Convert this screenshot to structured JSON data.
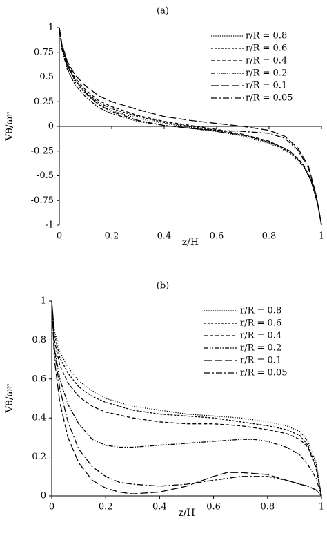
{
  "chart_data": [
    {
      "type": "line",
      "panel_label": "(a)",
      "xlabel": "z/H",
      "ylabel": "Vθ/ωr",
      "xlim": [
        0,
        1
      ],
      "ylim": [
        -1,
        1
      ],
      "xticks": [
        "0",
        "0.2",
        "0.4",
        "0.6",
        "0.8",
        "1"
      ],
      "yticks": [
        "1",
        "0.75",
        "0.5",
        "0.25",
        "0",
        "-0.25",
        "-0.5",
        "-0.75",
        "-1"
      ],
      "grid": false,
      "legend_position": "top-right",
      "series": [
        {
          "name": "r/R = 0.8",
          "style": "dotted",
          "x": [
            0,
            0.01,
            0.03,
            0.06,
            0.1,
            0.15,
            0.2,
            0.3,
            0.4,
            0.5,
            0.6,
            0.7,
            0.8,
            0.88,
            0.93,
            0.96,
            0.985,
            1
          ],
          "y": [
            1,
            0.8,
            0.6,
            0.45,
            0.33,
            0.22,
            0.16,
            0.08,
            0.03,
            -0.01,
            -0.05,
            -0.1,
            -0.17,
            -0.27,
            -0.4,
            -0.55,
            -0.78,
            -1
          ]
        },
        {
          "name": "r/R = 0.6",
          "style": "short-dash",
          "x": [
            0,
            0.01,
            0.03,
            0.06,
            0.1,
            0.15,
            0.2,
            0.3,
            0.4,
            0.5,
            0.6,
            0.7,
            0.8,
            0.88,
            0.93,
            0.96,
            0.985,
            1
          ],
          "y": [
            1,
            0.8,
            0.62,
            0.47,
            0.35,
            0.24,
            0.18,
            0.1,
            0.04,
            0,
            -0.04,
            -0.09,
            -0.16,
            -0.26,
            -0.39,
            -0.55,
            -0.78,
            -1
          ]
        },
        {
          "name": "r/R = 0.4",
          "style": "dash",
          "x": [
            0,
            0.01,
            0.03,
            0.06,
            0.1,
            0.15,
            0.2,
            0.3,
            0.4,
            0.5,
            0.6,
            0.7,
            0.8,
            0.88,
            0.93,
            0.96,
            0.985,
            1
          ],
          "y": [
            1,
            0.82,
            0.64,
            0.49,
            0.37,
            0.26,
            0.2,
            0.11,
            0.05,
            0.01,
            -0.03,
            -0.08,
            -0.15,
            -0.25,
            -0.38,
            -0.54,
            -0.77,
            -1
          ]
        },
        {
          "name": "r/R = 0.2",
          "style": "dash-dot-dot",
          "x": [
            0,
            0.01,
            0.03,
            0.06,
            0.1,
            0.15,
            0.2,
            0.3,
            0.4,
            0.5,
            0.6,
            0.7,
            0.8,
            0.88,
            0.93,
            0.96,
            0.985,
            1
          ],
          "y": [
            1,
            0.78,
            0.58,
            0.42,
            0.3,
            0.19,
            0.13,
            0.05,
            0.01,
            -0.02,
            -0.05,
            -0.09,
            -0.15,
            -0.25,
            -0.39,
            -0.55,
            -0.78,
            -1
          ]
        },
        {
          "name": "r/R = 0.1",
          "style": "long-dash",
          "x": [
            0,
            0.01,
            0.03,
            0.06,
            0.1,
            0.15,
            0.2,
            0.3,
            0.4,
            0.5,
            0.6,
            0.7,
            0.8,
            0.86,
            0.91,
            0.95,
            0.98,
            1
          ],
          "y": [
            1,
            0.83,
            0.66,
            0.52,
            0.41,
            0.31,
            0.25,
            0.17,
            0.1,
            0.06,
            0.03,
            0,
            -0.04,
            -0.1,
            -0.22,
            -0.4,
            -0.7,
            -1
          ]
        },
        {
          "name": "r/R = 0.05",
          "style": "dash-dot",
          "x": [
            0,
            0.01,
            0.03,
            0.06,
            0.1,
            0.15,
            0.2,
            0.3,
            0.4,
            0.5,
            0.6,
            0.7,
            0.8,
            0.86,
            0.91,
            0.95,
            0.98,
            1
          ],
          "y": [
            1,
            0.8,
            0.62,
            0.47,
            0.34,
            0.22,
            0.15,
            0.06,
            0.01,
            -0.02,
            -0.04,
            -0.05,
            -0.07,
            -0.12,
            -0.24,
            -0.42,
            -0.7,
            -1
          ]
        }
      ]
    },
    {
      "type": "line",
      "panel_label": "(b)",
      "xlabel": "z/H",
      "ylabel": "Vθ/ωr",
      "xlim": [
        0,
        1
      ],
      "ylim": [
        0,
        1
      ],
      "xticks": [
        "0",
        "0.2",
        "0.4",
        "0.6",
        "0.8",
        "1"
      ],
      "yticks": [
        "1",
        "0.8",
        "0.6",
        "0.4",
        "0.2",
        "0"
      ],
      "grid": false,
      "legend_position": "top-right",
      "series": [
        {
          "name": "r/R = 0.8",
          "style": "dotted",
          "x": [
            0,
            0.01,
            0.03,
            0.06,
            0.1,
            0.15,
            0.2,
            0.3,
            0.4,
            0.5,
            0.6,
            0.7,
            0.8,
            0.87,
            0.92,
            0.95,
            0.98,
            1
          ],
          "y": [
            1,
            0.85,
            0.74,
            0.66,
            0.59,
            0.54,
            0.5,
            0.46,
            0.44,
            0.42,
            0.41,
            0.4,
            0.38,
            0.36,
            0.33,
            0.28,
            0.17,
            0
          ]
        },
        {
          "name": "r/R = 0.6",
          "style": "short-dash",
          "x": [
            0,
            0.01,
            0.03,
            0.06,
            0.1,
            0.15,
            0.2,
            0.3,
            0.4,
            0.5,
            0.6,
            0.7,
            0.8,
            0.87,
            0.92,
            0.95,
            0.98,
            1
          ],
          "y": [
            1,
            0.83,
            0.71,
            0.63,
            0.56,
            0.51,
            0.48,
            0.44,
            0.42,
            0.41,
            0.4,
            0.38,
            0.36,
            0.34,
            0.31,
            0.26,
            0.15,
            0
          ]
        },
        {
          "name": "r/R = 0.4",
          "style": "dash",
          "x": [
            0,
            0.01,
            0.03,
            0.06,
            0.1,
            0.15,
            0.2,
            0.3,
            0.4,
            0.5,
            0.6,
            0.7,
            0.8,
            0.87,
            0.92,
            0.95,
            0.98,
            1
          ],
          "y": [
            1,
            0.8,
            0.67,
            0.58,
            0.51,
            0.46,
            0.43,
            0.4,
            0.38,
            0.37,
            0.37,
            0.36,
            0.34,
            0.32,
            0.29,
            0.25,
            0.14,
            0
          ]
        },
        {
          "name": "r/R = 0.2",
          "style": "dash-dot-dot",
          "x": [
            0,
            0.01,
            0.03,
            0.06,
            0.1,
            0.15,
            0.2,
            0.25,
            0.3,
            0.4,
            0.5,
            0.6,
            0.7,
            0.75,
            0.8,
            0.87,
            0.92,
            0.95,
            0.98,
            1
          ],
          "y": [
            1,
            0.76,
            0.6,
            0.47,
            0.37,
            0.29,
            0.26,
            0.25,
            0.25,
            0.26,
            0.27,
            0.28,
            0.29,
            0.29,
            0.28,
            0.25,
            0.21,
            0.16,
            0.09,
            0
          ]
        },
        {
          "name": "r/R = 0.1",
          "style": "long-dash",
          "x": [
            0,
            0.01,
            0.03,
            0.06,
            0.1,
            0.15,
            0.2,
            0.25,
            0.3,
            0.4,
            0.5,
            0.6,
            0.65,
            0.7,
            0.8,
            0.87,
            0.92,
            0.95,
            0.98,
            1
          ],
          "y": [
            1,
            0.7,
            0.48,
            0.3,
            0.17,
            0.08,
            0.04,
            0.02,
            0.01,
            0.02,
            0.05,
            0.1,
            0.12,
            0.12,
            0.11,
            0.08,
            0.06,
            0.05,
            0.03,
            0
          ]
        },
        {
          "name": "r/R = 0.05",
          "style": "dash-dot",
          "x": [
            0,
            0.01,
            0.03,
            0.06,
            0.1,
            0.15,
            0.2,
            0.25,
            0.3,
            0.4,
            0.5,
            0.6,
            0.7,
            0.8,
            0.87,
            0.92,
            0.95,
            0.98,
            1
          ],
          "y": [
            1,
            0.75,
            0.55,
            0.38,
            0.24,
            0.15,
            0.1,
            0.07,
            0.06,
            0.05,
            0.06,
            0.08,
            0.1,
            0.1,
            0.08,
            0.06,
            0.05,
            0.03,
            0
          ]
        }
      ]
    }
  ]
}
